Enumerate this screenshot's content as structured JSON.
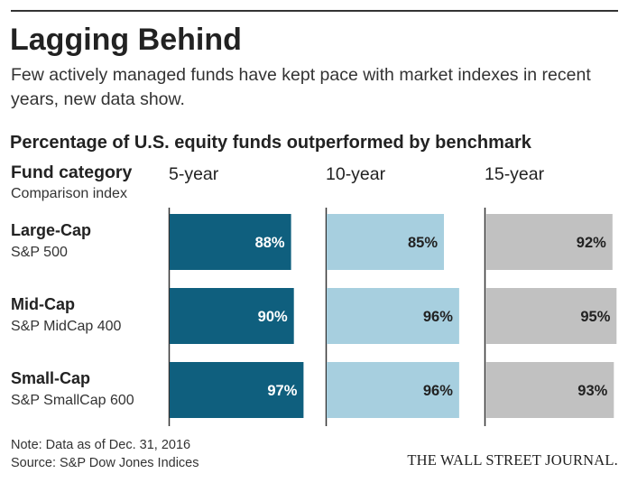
{
  "header": {
    "title": "Lagging Behind",
    "subtitle": "Few actively managed funds have kept pace with market indexes in recent years, new data show."
  },
  "section_title": "Percentage of U.S. equity funds outperformed by benchmark",
  "column_headers": {
    "category": "Fund category",
    "index": "Comparison index"
  },
  "colors": {
    "five_year": "#0f5f7e",
    "ten_year": "#a7cfdf",
    "fifteen_year": "#c1c1c1",
    "axis_line": "#333333",
    "label_light": "#ffffff",
    "label_dark": "#222222"
  },
  "chart_data": {
    "type": "bar",
    "orientation": "horizontal",
    "layout": "small-multiples",
    "categories": [
      "Large-Cap",
      "Mid-Cap",
      "Small-Cap"
    ],
    "category_indexes": [
      "S&P 500",
      "S&P MidCap 400",
      "S&P SmallCap 600"
    ],
    "unit": "%",
    "xlim": [
      0,
      100
    ],
    "grid": false,
    "series": [
      {
        "name": "5-year",
        "values": [
          88,
          90,
          97
        ]
      },
      {
        "name": "10-year",
        "values": [
          85,
          96,
          96
        ]
      },
      {
        "name": "15-year",
        "values": [
          92,
          95,
          93
        ]
      }
    ]
  },
  "footer": {
    "note": "Note: Data as of Dec. 31, 2016",
    "source": "Source: S&P Dow Jones Indices",
    "credit": "THE WALL STREET JOURNAL."
  }
}
